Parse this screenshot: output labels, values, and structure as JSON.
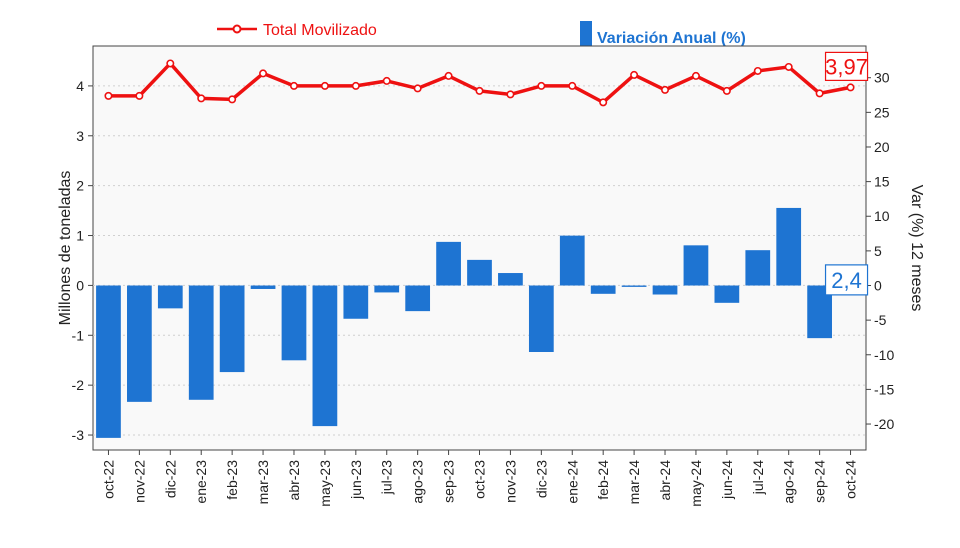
{
  "chart_data": {
    "type": "bar+line",
    "categories": [
      "oct-22",
      "nov-22",
      "dic-22",
      "ene-23",
      "feb-23",
      "mar-23",
      "abr-23",
      "may-23",
      "jun-23",
      "jul-23",
      "ago-23",
      "sep-23",
      "oct-23",
      "nov-23",
      "dic-23",
      "ene-24",
      "feb-24",
      "mar-24",
      "abr-24",
      "may-24",
      "jun-24",
      "jul-24",
      "ago-24",
      "sep-24",
      "oct-24"
    ],
    "series": [
      {
        "name": "Total Movilizado",
        "type": "line",
        "axis": "left",
        "color": "#ee1111",
        "values": [
          3.8,
          3.8,
          4.45,
          3.75,
          3.73,
          4.25,
          4.0,
          4.0,
          4.0,
          4.1,
          3.95,
          4.2,
          3.9,
          3.83,
          4.0,
          4.0,
          3.67,
          4.22,
          3.92,
          4.2,
          3.9,
          4.3,
          4.38,
          3.85,
          3.97
        ]
      },
      {
        "name": "Variación Anual (%)",
        "type": "bar",
        "axis": "right",
        "color": "#1e74d2",
        "values": [
          -22.0,
          -16.8,
          -3.3,
          -16.5,
          -12.5,
          -0.5,
          -10.8,
          -20.3,
          -4.8,
          -1.0,
          -3.7,
          6.3,
          3.7,
          1.8,
          -9.6,
          7.2,
          -1.2,
          -0.2,
          -1.3,
          5.8,
          -2.5,
          5.1,
          11.2,
          -7.6,
          2.4
        ]
      }
    ],
    "ylabel": "Millones de toneladas",
    "y2label": "Var (%) 12 meses",
    "ylim": [
      -3.3,
      4.8
    ],
    "y2lim": [
      -23.75,
      34.58
    ],
    "yticks": [
      -3,
      -2,
      -1,
      0,
      1,
      2,
      3,
      4
    ],
    "y2ticks": [
      -20,
      -15,
      -10,
      -5,
      0,
      5,
      10,
      15,
      20,
      25,
      30
    ],
    "grid": true,
    "legend_position": "top",
    "last_value_labels": {
      "line": "3,97",
      "bar": "2,4"
    }
  }
}
